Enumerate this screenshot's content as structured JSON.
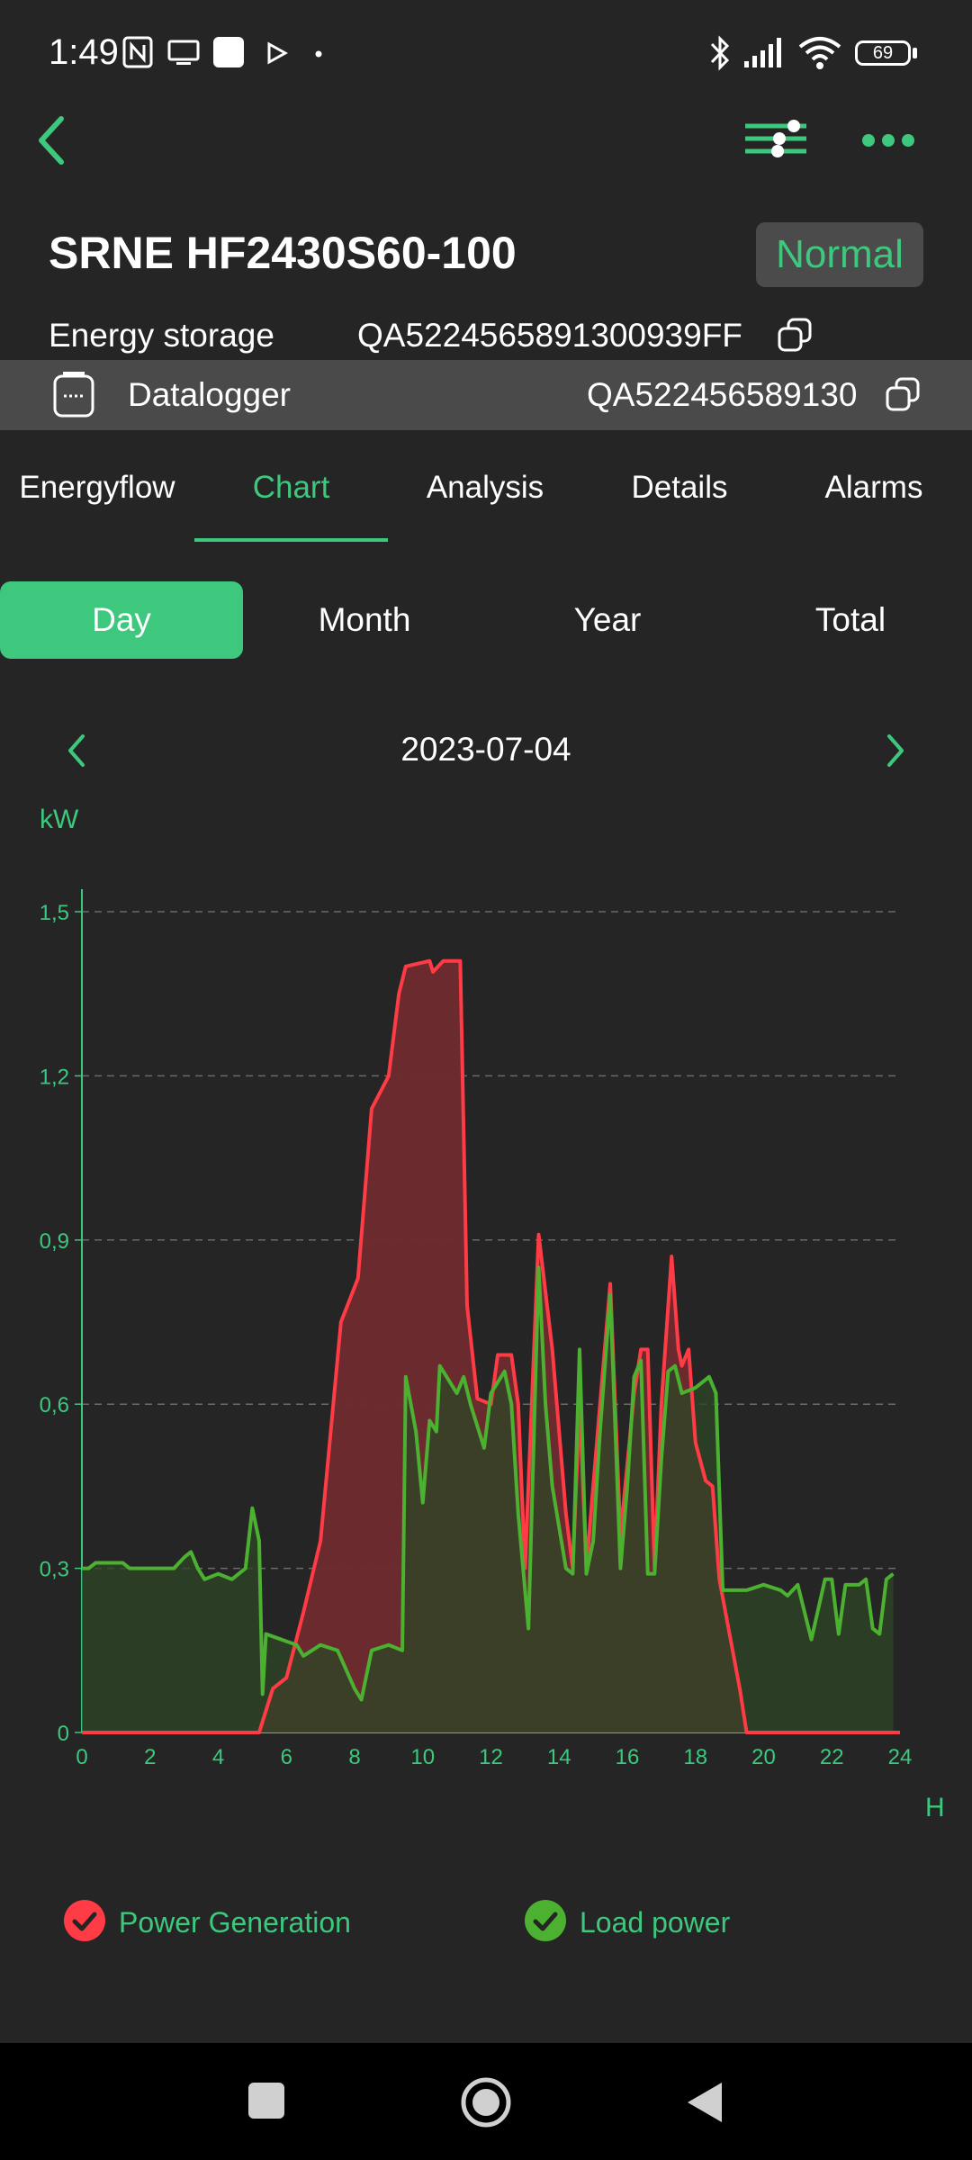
{
  "status_bar": {
    "time": "1:49",
    "battery": "69",
    "icons": [
      "nfc-icon",
      "screen-cast-icon",
      "app-icon",
      "play-icon",
      "dot-icon",
      "bluetooth-icon",
      "signal-icon",
      "wifi-icon",
      "battery-icon"
    ]
  },
  "header": {
    "title": "SRNE HF2430S60-100",
    "status": "Normal",
    "energy_storage_label": "Energy storage",
    "energy_storage_sn": "QA5224565891300939FF",
    "datalogger_label": "Datalogger",
    "datalogger_sn": "QA522456589130"
  },
  "tabs": [
    "Energyflow",
    "Chart",
    "Analysis",
    "Details",
    "Alarms"
  ],
  "active_tab": "Chart",
  "periods": [
    "Day",
    "Month",
    "Year",
    "Total"
  ],
  "active_period": "Day",
  "date": "2023-07-04",
  "chart_data": {
    "type": "area",
    "y_unit": "kW",
    "x_unit": "H",
    "xlim": [
      0,
      24
    ],
    "ylim": [
      0,
      1.5
    ],
    "x_ticks": [
      "0",
      "2",
      "4",
      "6",
      "8",
      "10",
      "12",
      "14",
      "16",
      "18",
      "20",
      "22",
      "24"
    ],
    "y_ticks": [
      "0",
      "0,3",
      "0,6",
      "0,9",
      "1,2",
      "1,5"
    ],
    "grid": "horizontal dashed",
    "legend_position": "bottom",
    "series": [
      {
        "name": "Power Generation",
        "color": "#ff3b45",
        "fill": "#6e2a2e",
        "points": [
          [
            0,
            0
          ],
          [
            5.2,
            0
          ],
          [
            5.6,
            0.08
          ],
          [
            6,
            0.1
          ],
          [
            6.5,
            0.22
          ],
          [
            7,
            0.35
          ],
          [
            7.6,
            0.75
          ],
          [
            8.1,
            0.83
          ],
          [
            8.5,
            1.14
          ],
          [
            9,
            1.2
          ],
          [
            9.3,
            1.35
          ],
          [
            9.5,
            1.4
          ],
          [
            10.2,
            1.41
          ],
          [
            10.3,
            1.39
          ],
          [
            10.6,
            1.41
          ],
          [
            11.1,
            1.41
          ],
          [
            11.3,
            0.78
          ],
          [
            11.6,
            0.61
          ],
          [
            12,
            0.6
          ],
          [
            12.2,
            0.69
          ],
          [
            12.6,
            0.69
          ],
          [
            12.8,
            0.6
          ],
          [
            13,
            0.3
          ],
          [
            13.4,
            0.91
          ],
          [
            13.8,
            0.7
          ],
          [
            14.2,
            0.4
          ],
          [
            14.4,
            0.3
          ],
          [
            14.6,
            0.6
          ],
          [
            14.8,
            0.3
          ],
          [
            15.2,
            0.6
          ],
          [
            15.5,
            0.82
          ],
          [
            15.8,
            0.36
          ],
          [
            16.2,
            0.62
          ],
          [
            16.4,
            0.7
          ],
          [
            16.6,
            0.7
          ],
          [
            16.8,
            0.3
          ],
          [
            17,
            0.6
          ],
          [
            17.3,
            0.87
          ],
          [
            17.5,
            0.7
          ],
          [
            17.6,
            0.67
          ],
          [
            17.8,
            0.7
          ],
          [
            18,
            0.53
          ],
          [
            18.3,
            0.46
          ],
          [
            18.5,
            0.45
          ],
          [
            18.7,
            0.28
          ],
          [
            19,
            0.18
          ],
          [
            19.3,
            0.08
          ],
          [
            19.5,
            0
          ],
          [
            24,
            0
          ]
        ]
      },
      {
        "name": "Load power",
        "color": "#4cb031",
        "fill": "#2e4726",
        "points": [
          [
            0,
            0.3
          ],
          [
            0.2,
            0.3
          ],
          [
            0.4,
            0.31
          ],
          [
            1.2,
            0.31
          ],
          [
            1.4,
            0.3
          ],
          [
            2.5,
            0.3
          ],
          [
            2.7,
            0.3
          ],
          [
            3,
            0.32
          ],
          [
            3.2,
            0.33
          ],
          [
            3.4,
            0.3
          ],
          [
            3.6,
            0.28
          ],
          [
            4,
            0.29
          ],
          [
            4.4,
            0.28
          ],
          [
            4.6,
            0.29
          ],
          [
            4.8,
            0.3
          ],
          [
            5,
            0.41
          ],
          [
            5.2,
            0.35
          ],
          [
            5.3,
            0.07
          ],
          [
            5.4,
            0.18
          ],
          [
            6.3,
            0.16
          ],
          [
            6.5,
            0.14
          ],
          [
            7,
            0.16
          ],
          [
            7.5,
            0.15
          ],
          [
            8,
            0.08
          ],
          [
            8.2,
            0.06
          ],
          [
            8.5,
            0.15
          ],
          [
            9,
            0.16
          ],
          [
            9.4,
            0.15
          ],
          [
            9.5,
            0.65
          ],
          [
            9.8,
            0.55
          ],
          [
            10,
            0.42
          ],
          [
            10.2,
            0.57
          ],
          [
            10.4,
            0.55
          ],
          [
            10.5,
            0.67
          ],
          [
            11,
            0.62
          ],
          [
            11.2,
            0.65
          ],
          [
            11.4,
            0.6
          ],
          [
            11.8,
            0.52
          ],
          [
            12,
            0.62
          ],
          [
            12.4,
            0.66
          ],
          [
            12.6,
            0.6
          ],
          [
            12.8,
            0.4
          ],
          [
            13.1,
            0.19
          ],
          [
            13.4,
            0.85
          ],
          [
            13.6,
            0.6
          ],
          [
            13.8,
            0.45
          ],
          [
            14.2,
            0.3
          ],
          [
            14.4,
            0.29
          ],
          [
            14.6,
            0.7
          ],
          [
            14.8,
            0.29
          ],
          [
            15,
            0.35
          ],
          [
            15.2,
            0.55
          ],
          [
            15.5,
            0.8
          ],
          [
            15.8,
            0.3
          ],
          [
            16,
            0.45
          ],
          [
            16.2,
            0.65
          ],
          [
            16.4,
            0.68
          ],
          [
            16.6,
            0.29
          ],
          [
            16.8,
            0.29
          ],
          [
            17,
            0.5
          ],
          [
            17.2,
            0.66
          ],
          [
            17.4,
            0.67
          ],
          [
            17.6,
            0.62
          ],
          [
            18,
            0.63
          ],
          [
            18.4,
            0.65
          ],
          [
            18.6,
            0.62
          ],
          [
            18.8,
            0.26
          ],
          [
            19.5,
            0.26
          ],
          [
            20,
            0.27
          ],
          [
            20.5,
            0.26
          ],
          [
            20.7,
            0.25
          ],
          [
            21,
            0.27
          ],
          [
            21.2,
            0.22
          ],
          [
            21.4,
            0.17
          ],
          [
            21.8,
            0.28
          ],
          [
            22,
            0.28
          ],
          [
            22.2,
            0.18
          ],
          [
            22.4,
            0.27
          ],
          [
            22.8,
            0.27
          ],
          [
            23,
            0.28
          ],
          [
            23.2,
            0.19
          ],
          [
            23.4,
            0.18
          ],
          [
            23.6,
            0.28
          ],
          [
            23.8,
            0.29
          ]
        ]
      }
    ]
  },
  "legend": [
    "Power Generation",
    "Load power"
  ]
}
